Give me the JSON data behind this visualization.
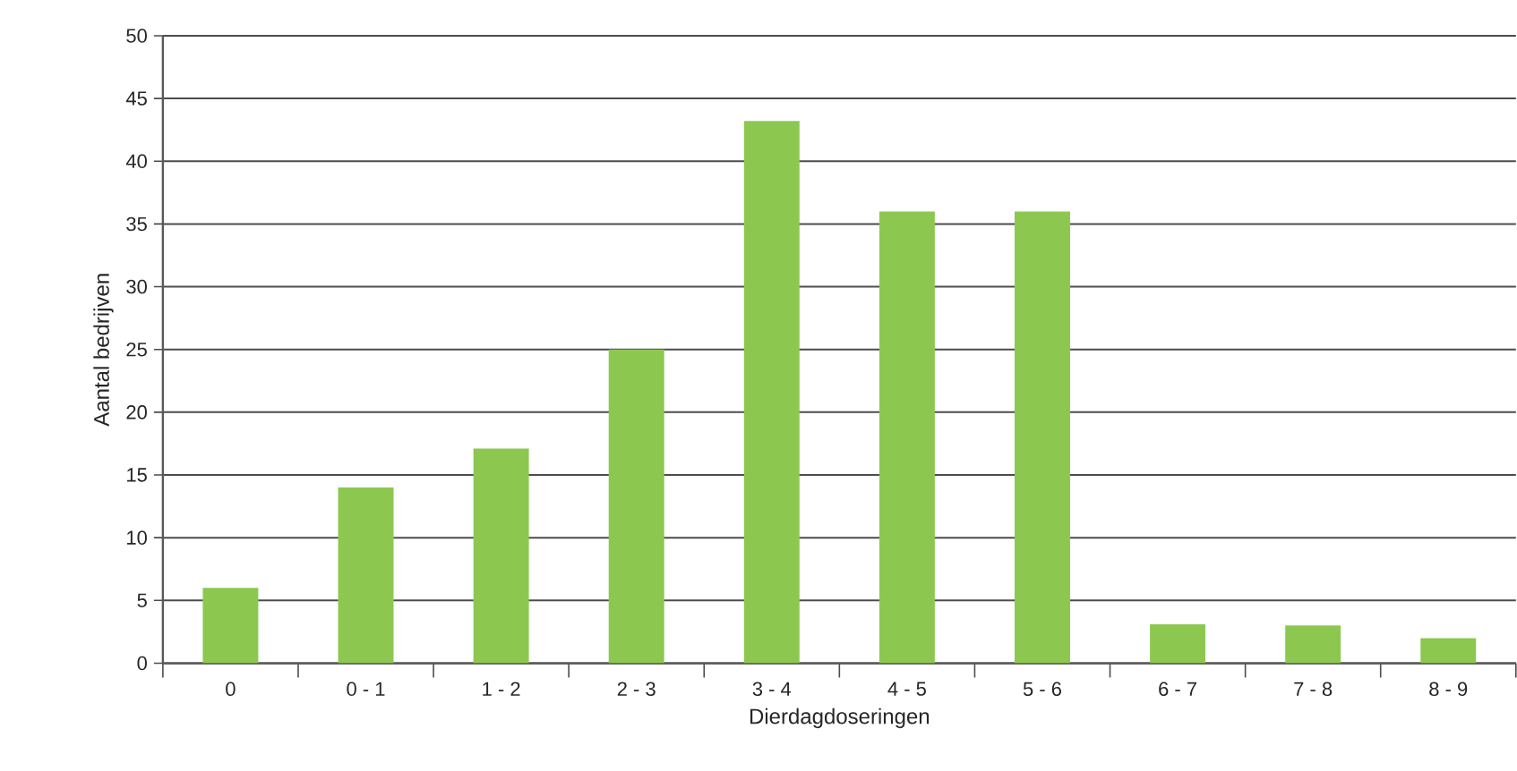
{
  "chart_data": {
    "type": "bar",
    "xlabel": "Dierdagdoseringen",
    "ylabel": "Aantal bedrijven",
    "categories": [
      "0",
      "0 - 1",
      "1 - 2",
      "2 - 3",
      "3 - 4",
      "4 - 5",
      "5 - 6",
      "6 - 7",
      "7 - 8",
      "8 - 9"
    ],
    "values": [
      6,
      14,
      17.1,
      25,
      43.2,
      36,
      36,
      3.1,
      3,
      2
    ],
    "color": "#8cc850",
    "ylim": [
      0,
      50
    ],
    "yticks": [
      0,
      5,
      10,
      15,
      20,
      25,
      30,
      35,
      40,
      45,
      50
    ],
    "grid": "y"
  }
}
